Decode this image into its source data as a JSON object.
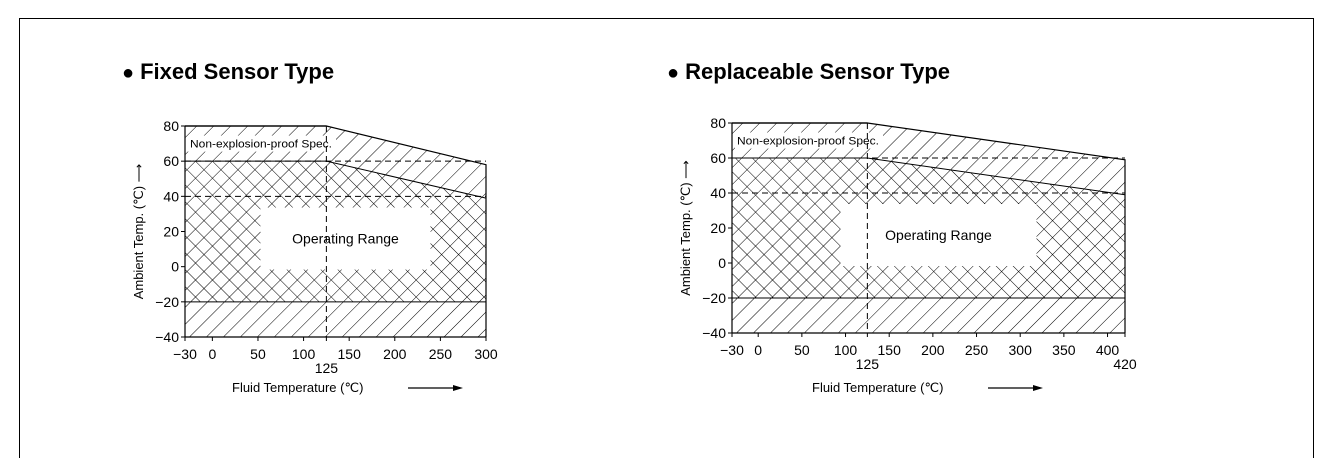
{
  "chart_data": [
    {
      "type": "area",
      "title": "Fixed Sensor Type",
      "ylabel": "Ambient Temp. (℃) ⟶",
      "xlabel": "Fluid Temperature (℃)",
      "x_ticks": [
        "−30",
        "0",
        "50",
        "100",
        "125",
        "150",
        "200",
        "250",
        "300"
      ],
      "y_ticks": [
        "80",
        "60",
        "40",
        "20",
        "0",
        "−20",
        "−40"
      ],
      "xlim": [
        -30,
        300
      ],
      "ylim": [
        -40,
        80
      ],
      "region_labels": [
        "Non-explosion-proof Spec.",
        "Operating Range"
      ],
      "regions": {
        "non_explosion_proof_upper_boundary": [
          [
            -30,
            80
          ],
          [
            125,
            80
          ],
          [
            300,
            58
          ]
        ],
        "operating_range_upper_boundary": [
          [
            -30,
            60
          ],
          [
            125,
            60
          ],
          [
            300,
            39
          ]
        ],
        "operating_range_lower_limit": -20
      }
    },
    {
      "type": "area",
      "title": "Replaceable Sensor Type",
      "ylabel": "Ambient Temp. (℃) ⟶",
      "xlabel": "Fluid Temperature (℃)",
      "x_ticks": [
        "−30",
        "0",
        "50",
        "100",
        "125",
        "150",
        "200",
        "250",
        "300",
        "350",
        "400",
        "420"
      ],
      "y_ticks": [
        "80",
        "60",
        "40",
        "20",
        "0",
        "−20",
        "−40"
      ],
      "xlim": [
        -30,
        420
      ],
      "ylim": [
        -40,
        80
      ],
      "region_labels": [
        "Non-explosion-proof Spec.",
        "Operating Range"
      ],
      "regions": {
        "non_explosion_proof_upper_boundary": [
          [
            -30,
            80
          ],
          [
            125,
            80
          ],
          [
            420,
            59
          ]
        ],
        "operating_range_upper_boundary": [
          [
            -30,
            60
          ],
          [
            125,
            60
          ],
          [
            420,
            39
          ]
        ],
        "operating_range_lower_limit": -20
      }
    }
  ]
}
